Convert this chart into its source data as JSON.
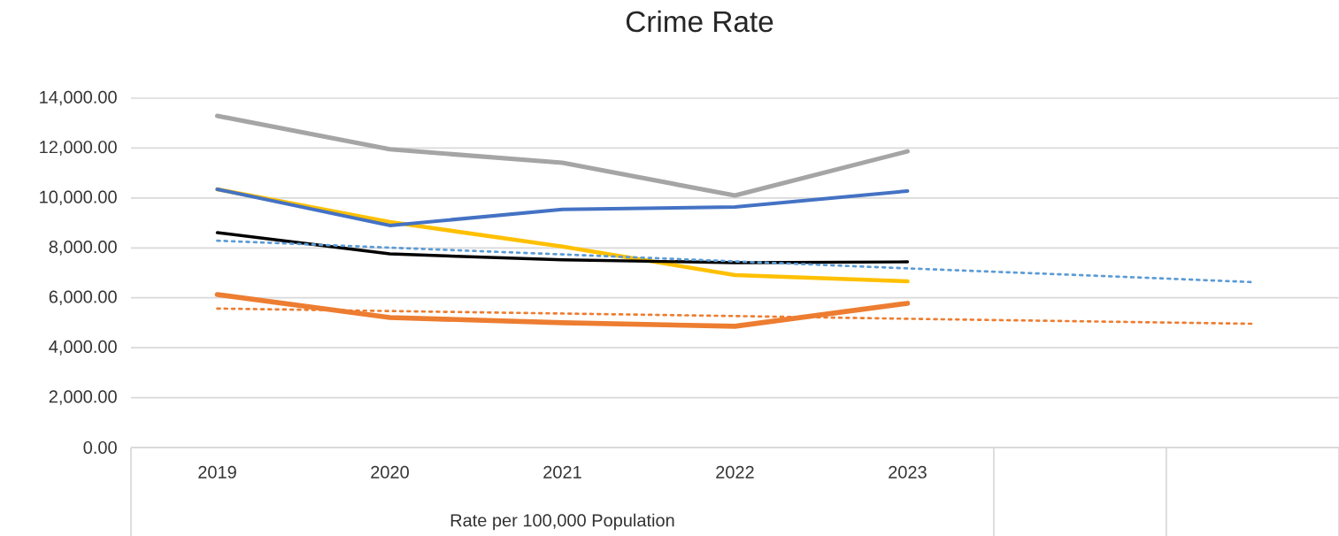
{
  "chart_data": {
    "type": "line",
    "title": "Crime Rate",
    "xlabel": "Rate per 100,000 Population",
    "categories": [
      "2019",
      "2020",
      "2021",
      "2022",
      "2023",
      null,
      null
    ],
    "series": [
      {
        "color": "#ed7d31",
        "values": [
          6130,
          5210,
          5000,
          4860,
          5780,
          null,
          null
        ]
      },
      {
        "color": "#a5a5a5",
        "values": [
          13290,
          11950,
          11410,
          10100,
          11870,
          null,
          null
        ]
      },
      {
        "color": "#ffc000",
        "values": [
          10350,
          9040,
          8050,
          6910,
          6660,
          null,
          null
        ]
      },
      {
        "color": "#4472c4",
        "values": [
          10350,
          8900,
          9540,
          9640,
          10280,
          null,
          null
        ]
      },
      {
        "color": "#000000",
        "values": [
          8610,
          7760,
          7520,
          7410,
          7440,
          null,
          null
        ]
      },
      {
        "color": "#5b9bd5",
        "line_style": "dotted",
        "values": [
          8290,
          8010,
          7740,
          7460,
          7180,
          6910,
          6630
        ]
      },
      {
        "color": "#ed7d31",
        "line_style": "dotted",
        "values": [
          5570,
          5470,
          5370,
          5270,
          5160,
          5060,
          4960
        ]
      }
    ],
    "ylim": [
      0,
      14000
    ],
    "yticks": [
      {
        "value": 0,
        "label": "0.00"
      },
      {
        "value": 2000,
        "label": "2,000.00"
      },
      {
        "value": 4000,
        "label": "4,000.00"
      },
      {
        "value": 6000,
        "label": "6,000.00"
      },
      {
        "value": 8000,
        "label": "8,000.00"
      },
      {
        "value": 10000,
        "label": "10,000.00"
      },
      {
        "value": 12000,
        "label": "12,000.00"
      },
      {
        "value": 14000,
        "label": "14,000.00"
      }
    ],
    "grid": "y",
    "marker": "none",
    "line_style": "solid"
  }
}
